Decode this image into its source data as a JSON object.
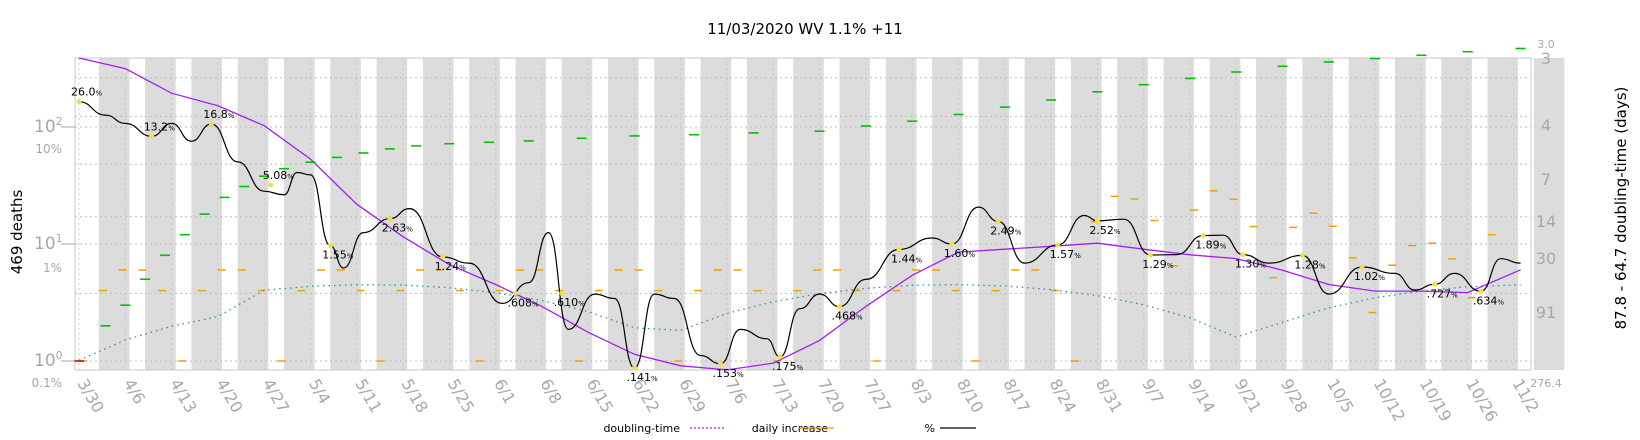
{
  "chart_data": {
    "type": "line",
    "title": "11/03/2020 WV 1.1% +11",
    "left_axis_label": "469 deaths",
    "right_axis_label": "87.8 - 64.7 doubling-time (days)",
    "x_ticks": [
      "3/30",
      "4/6",
      "4/13",
      "4/20",
      "4/27",
      "5/4",
      "5/11",
      "5/18",
      "5/25",
      "6/1",
      "6/8",
      "6/15",
      "6/22",
      "6/29",
      "7/6",
      "7/13",
      "7/20",
      "7/27",
      "8/3",
      "8/10",
      "8/17",
      "8/24",
      "8/31",
      "9/7",
      "9/14",
      "9/21",
      "9/28",
      "10/5",
      "10/12",
      "10/19",
      "10/26",
      "11/2"
    ],
    "left_ticks_log": [
      {
        "label": "10",
        "sup": "0",
        "value": 1
      },
      {
        "label": "10",
        "sup": "1",
        "value": 10
      },
      {
        "label": "10",
        "sup": "2",
        "value": 100
      }
    ],
    "left_pct_ticks": [
      {
        "label": "0.1%",
        "value": 0.1
      },
      {
        "label": "1%",
        "value": 1
      },
      {
        "label": "10%",
        "value": 10
      }
    ],
    "right_ticks": [
      "3.0",
      "3",
      "4",
      "7",
      "14",
      "30",
      "91",
      "276.4"
    ],
    "legend": [
      {
        "name": "doubling-time",
        "style": "dotted",
        "color": "#a020f0"
      },
      {
        "name": "daily increase",
        "style": "solid",
        "color": "#f0a000"
      },
      {
        "name": "%",
        "style": "solid",
        "color": "#000000"
      }
    ],
    "colors": {
      "cumulative_up": "#00c000",
      "cumulative_flat": "#e00000",
      "percent_line": "#000000",
      "doubling_line": "#a020f0",
      "daily_bars": "#f0a000",
      "trend_dotted": "#2a8fb0",
      "annotation_dot": "#f0e040",
      "week_band": "#dcdcdc"
    },
    "pct_annotations": [
      {
        "date": "3/30",
        "text": "26.0",
        "value": 26.0
      },
      {
        "date": "4/10",
        "text": "13.2",
        "value": 13.2
      },
      {
        "date": "4/19",
        "text": "16.8",
        "value": 16.8
      },
      {
        "date": "4/28",
        "text": "5.08",
        "value": 5.08
      },
      {
        "date": "5/7",
        "text": "1.55",
        "value": 1.55
      },
      {
        "date": "5/16",
        "text": "2.63",
        "value": 2.63
      },
      {
        "date": "5/24",
        "text": "1.24",
        "value": 1.24
      },
      {
        "date": "6/4",
        "text": ".608",
        "value": 0.608
      },
      {
        "date": "6/11",
        "text": ".610",
        "value": 0.61
      },
      {
        "date": "6/22",
        "text": ".141",
        "value": 0.141
      },
      {
        "date": "7/5",
        "text": ".153",
        "value": 0.153
      },
      {
        "date": "7/14",
        "text": ".175",
        "value": 0.175
      },
      {
        "date": "7/23",
        "text": ".468",
        "value": 0.468
      },
      {
        "date": "8/1",
        "text": "1.44",
        "value": 1.44
      },
      {
        "date": "8/9",
        "text": "1.60",
        "value": 1.6
      },
      {
        "date": "8/16",
        "text": "2.49",
        "value": 2.49
      },
      {
        "date": "8/25",
        "text": "1.57",
        "value": 1.57
      },
      {
        "date": "8/31",
        "text": "2.52",
        "value": 2.52
      },
      {
        "date": "9/8",
        "text": "1.29",
        "value": 1.29
      },
      {
        "date": "9/16",
        "text": "1.89",
        "value": 1.89
      },
      {
        "date": "9/22",
        "text": "1.30",
        "value": 1.3
      },
      {
        "date": "10/1",
        "text": "1.28",
        "value": 1.28
      },
      {
        "date": "10/10",
        "text": "1.02",
        "value": 1.02
      },
      {
        "date": "10/21",
        "text": ".727",
        "value": 0.727
      },
      {
        "date": "10/28",
        "text": ".634",
        "value": 0.634
      }
    ],
    "cumulative_deaths": [
      {
        "date": "3/30",
        "value": 1
      },
      {
        "date": "4/3",
        "value": 2
      },
      {
        "date": "4/6",
        "value": 3
      },
      {
        "date": "4/9",
        "value": 5
      },
      {
        "date": "4/12",
        "value": 8
      },
      {
        "date": "4/15",
        "value": 12
      },
      {
        "date": "4/18",
        "value": 18
      },
      {
        "date": "4/21",
        "value": 25
      },
      {
        "date": "4/24",
        "value": 31
      },
      {
        "date": "4/27",
        "value": 38
      },
      {
        "date": "4/30",
        "value": 44
      },
      {
        "date": "5/4",
        "value": 50
      },
      {
        "date": "5/8",
        "value": 55
      },
      {
        "date": "5/12",
        "value": 60
      },
      {
        "date": "5/16",
        "value": 65
      },
      {
        "date": "5/20",
        "value": 69
      },
      {
        "date": "5/25",
        "value": 72
      },
      {
        "date": "5/31",
        "value": 74
      },
      {
        "date": "6/6",
        "value": 76
      },
      {
        "date": "6/14",
        "value": 80
      },
      {
        "date": "6/22",
        "value": 84
      },
      {
        "date": "7/1",
        "value": 86
      },
      {
        "date": "7/10",
        "value": 89
      },
      {
        "date": "7/20",
        "value": 92
      },
      {
        "date": "7/27",
        "value": 102
      },
      {
        "date": "8/3",
        "value": 112
      },
      {
        "date": "8/10",
        "value": 128
      },
      {
        "date": "8/17",
        "value": 148
      },
      {
        "date": "8/24",
        "value": 170
      },
      {
        "date": "8/31",
        "value": 200
      },
      {
        "date": "9/7",
        "value": 230
      },
      {
        "date": "9/14",
        "value": 260
      },
      {
        "date": "9/21",
        "value": 295
      },
      {
        "date": "9/28",
        "value": 330
      },
      {
        "date": "10/5",
        "value": 360
      },
      {
        "date": "10/12",
        "value": 385
      },
      {
        "date": "10/19",
        "value": 410
      },
      {
        "date": "10/26",
        "value": 440
      },
      {
        "date": "11/3",
        "value": 469
      }
    ],
    "percent_series": [
      {
        "date": "3/30",
        "value": 26.0
      },
      {
        "date": "4/3",
        "value": 20
      },
      {
        "date": "4/6",
        "value": 17
      },
      {
        "date": "4/10",
        "value": 13.2
      },
      {
        "date": "4/13",
        "value": 17
      },
      {
        "date": "4/16",
        "value": 12
      },
      {
        "date": "4/19",
        "value": 16.8
      },
      {
        "date": "4/23",
        "value": 8
      },
      {
        "date": "4/27",
        "value": 4.5
      },
      {
        "date": "4/30",
        "value": 4.2
      },
      {
        "date": "5/2",
        "value": 6.5
      },
      {
        "date": "5/4",
        "value": 6.2
      },
      {
        "date": "5/7",
        "value": 1.55
      },
      {
        "date": "5/9",
        "value": 1.0
      },
      {
        "date": "5/12",
        "value": 2.0
      },
      {
        "date": "5/16",
        "value": 2.63
      },
      {
        "date": "5/19",
        "value": 3.2
      },
      {
        "date": "5/24",
        "value": 1.24
      },
      {
        "date": "5/28",
        "value": 1.1
      },
      {
        "date": "6/2",
        "value": 0.5
      },
      {
        "date": "6/6",
        "value": 0.75
      },
      {
        "date": "6/9",
        "value": 2.0
      },
      {
        "date": "6/12",
        "value": 0.3
      },
      {
        "date": "6/16",
        "value": 0.6
      },
      {
        "date": "6/19",
        "value": 0.55
      },
      {
        "date": "6/22",
        "value": 0.141
      },
      {
        "date": "6/25",
        "value": 0.6
      },
      {
        "date": "6/28",
        "value": 0.55
      },
      {
        "date": "7/2",
        "value": 0.18
      },
      {
        "date": "7/5",
        "value": 0.153
      },
      {
        "date": "7/8",
        "value": 0.3
      },
      {
        "date": "7/12",
        "value": 0.25
      },
      {
        "date": "7/14",
        "value": 0.175
      },
      {
        "date": "7/17",
        "value": 0.45
      },
      {
        "date": "7/20",
        "value": 0.6
      },
      {
        "date": "7/23",
        "value": 0.468
      },
      {
        "date": "7/27",
        "value": 0.8
      },
      {
        "date": "8/1",
        "value": 1.44
      },
      {
        "date": "8/6",
        "value": 1.8
      },
      {
        "date": "8/9",
        "value": 1.6
      },
      {
        "date": "8/13",
        "value": 3.3
      },
      {
        "date": "8/16",
        "value": 2.49
      },
      {
        "date": "8/20",
        "value": 1.1
      },
      {
        "date": "8/25",
        "value": 1.57
      },
      {
        "date": "8/29",
        "value": 2.8
      },
      {
        "date": "8/31",
        "value": 2.52
      },
      {
        "date": "9/4",
        "value": 2.6
      },
      {
        "date": "9/8",
        "value": 1.29
      },
      {
        "date": "9/12",
        "value": 1.3
      },
      {
        "date": "9/16",
        "value": 1.89
      },
      {
        "date": "9/19",
        "value": 1.9
      },
      {
        "date": "9/22",
        "value": 1.3
      },
      {
        "date": "9/26",
        "value": 1.1
      },
      {
        "date": "10/1",
        "value": 1.28
      },
      {
        "date": "10/5",
        "value": 0.6
      },
      {
        "date": "10/10",
        "value": 1.02
      },
      {
        "date": "10/15",
        "value": 0.9
      },
      {
        "date": "10/18",
        "value": 0.65
      },
      {
        "date": "10/21",
        "value": 0.727
      },
      {
        "date": "10/24",
        "value": 0.9
      },
      {
        "date": "10/28",
        "value": 0.634
      },
      {
        "date": "10/31",
        "value": 1.2
      },
      {
        "date": "11/3",
        "value": 1.1
      }
    ],
    "doubling_series": [
      {
        "date": "3/30",
        "value": 3.0
      },
      {
        "date": "4/6",
        "value": 3.5
      },
      {
        "date": "4/13",
        "value": 5
      },
      {
        "date": "4/20",
        "value": 6
      },
      {
        "date": "4/27",
        "value": 8
      },
      {
        "date": "5/4",
        "value": 13
      },
      {
        "date": "5/11",
        "value": 25
      },
      {
        "date": "5/18",
        "value": 40
      },
      {
        "date": "5/25",
        "value": 60
      },
      {
        "date": "6/1",
        "value": 80
      },
      {
        "date": "6/8",
        "value": 110
      },
      {
        "date": "6/15",
        "value": 160
      },
      {
        "date": "6/22",
        "value": 220
      },
      {
        "date": "6/29",
        "value": 260
      },
      {
        "date": "7/6",
        "value": 276
      },
      {
        "date": "7/13",
        "value": 250
      },
      {
        "date": "7/20",
        "value": 180
      },
      {
        "date": "7/27",
        "value": 110
      },
      {
        "date": "8/3",
        "value": 70
      },
      {
        "date": "8/10",
        "value": 50
      },
      {
        "date": "8/17",
        "value": 48
      },
      {
        "date": "8/24",
        "value": 46
      },
      {
        "date": "8/31",
        "value": 44
      },
      {
        "date": "9/7",
        "value": 48
      },
      {
        "date": "9/14",
        "value": 52
      },
      {
        "date": "9/21",
        "value": 55
      },
      {
        "date": "9/28",
        "value": 65
      },
      {
        "date": "10/5",
        "value": 80
      },
      {
        "date": "10/12",
        "value": 88
      },
      {
        "date": "10/19",
        "value": 88
      },
      {
        "date": "10/26",
        "value": 90
      },
      {
        "date": "11/3",
        "value": 64.7
      }
    ]
  }
}
